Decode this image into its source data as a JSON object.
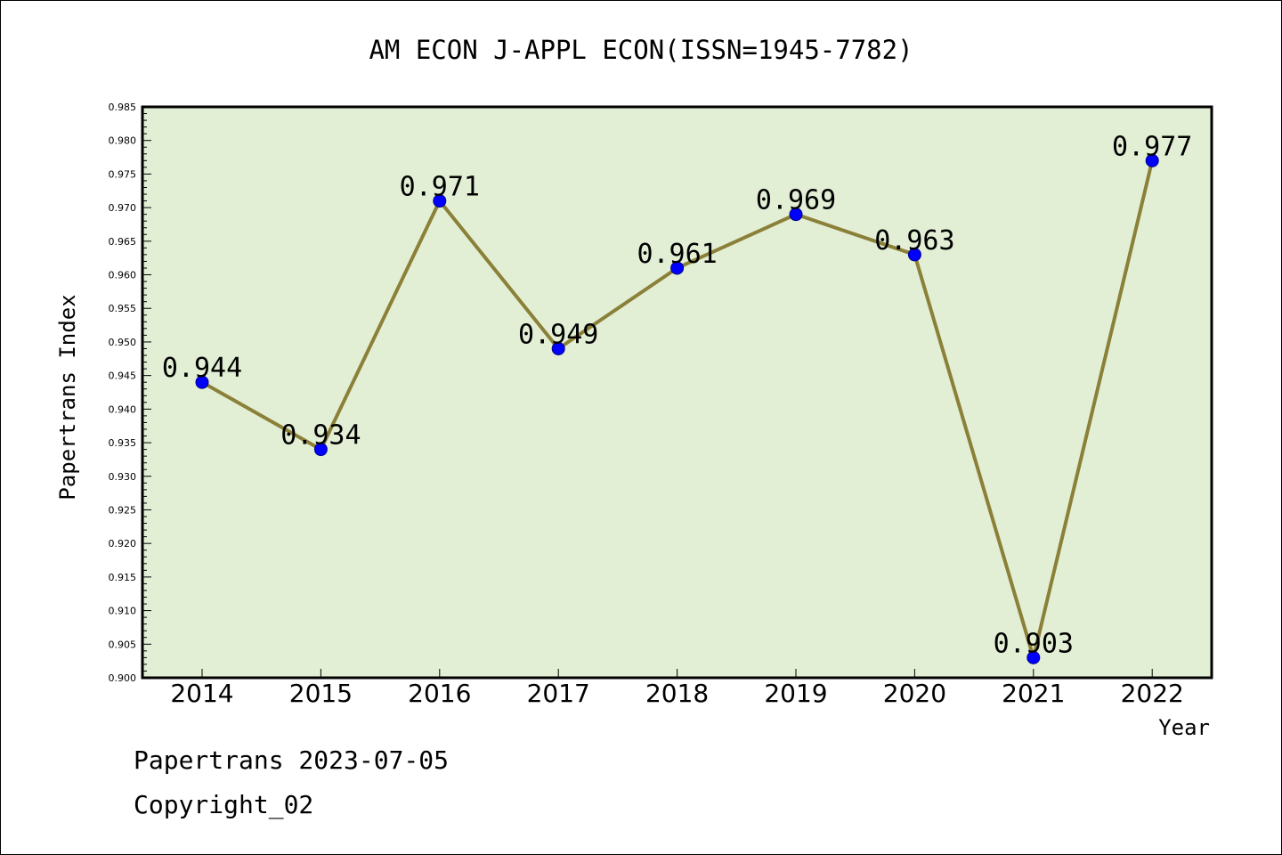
{
  "chart_data": {
    "type": "line",
    "title": "AM ECON J-APPL ECON(ISSN=1945-7782)",
    "xlabel": "Year",
    "ylabel": "Papertrans Index",
    "categories": [
      "2014",
      "2015",
      "2016",
      "2017",
      "2018",
      "2019",
      "2020",
      "2021",
      "2022"
    ],
    "series": [
      {
        "values": [
          0.944,
          0.934,
          0.971,
          0.949,
          0.961,
          0.969,
          0.963,
          0.903,
          0.977
        ],
        "data_labels": [
          "0.944",
          "0.934",
          "0.971",
          "0.949",
          "0.961",
          "0.969",
          "0.963",
          "0.903",
          "0.977"
        ],
        "line_color": "#8b8038",
        "marker_color": "#0000ff"
      }
    ],
    "ylim": [
      0.9,
      0.985
    ],
    "yticks": [
      "0.900",
      "0.905",
      "0.910",
      "0.915",
      "0.920",
      "0.925",
      "0.930",
      "0.935",
      "0.940",
      "0.945",
      "0.950",
      "0.955",
      "0.960",
      "0.965",
      "0.970",
      "0.975",
      "0.980",
      "0.985"
    ],
    "plot_background": "#e2efd5",
    "grid": false,
    "legend": "none"
  },
  "footer": {
    "date_line": "Papertrans 2023-07-05",
    "copyright_line": "Copyright_02"
  }
}
